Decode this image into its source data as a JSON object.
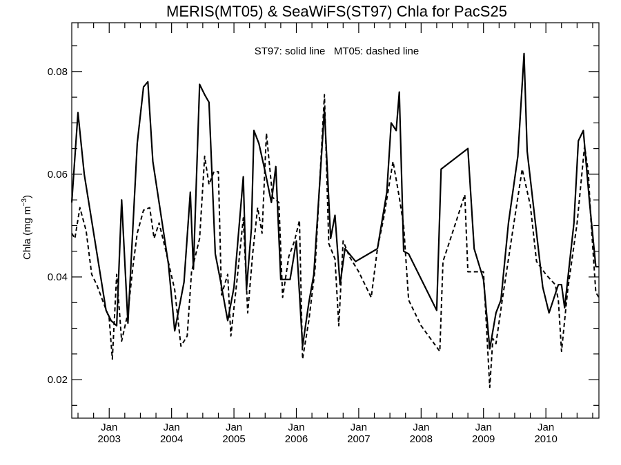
{
  "chart_data": {
    "type": "line",
    "title": "MERIS(MT05) & SeaWiFS(ST97)  Chla for PacS25",
    "annotation": "ST97: solid line   MT05: dashed line",
    "ylabel_main": "Chla (mg m",
    "ylabel_sup": "−3",
    "ylabel_close": ")",
    "xlim": [
      2002.4,
      2010.85
    ],
    "ylim": [
      0.0125,
      0.0895
    ],
    "y_ticks": [
      0.02,
      0.04,
      0.06,
      0.08
    ],
    "y_tick_labels": [
      "0.02",
      "0.04",
      "0.06",
      "0.08"
    ],
    "y_minor_step": 0.005,
    "x_ticks": [
      {
        "x": 2003.0,
        "month": "Jan",
        "year": "2003"
      },
      {
        "x": 2004.0,
        "month": "Jan",
        "year": "2004"
      },
      {
        "x": 2005.0,
        "month": "Jan",
        "year": "2005"
      },
      {
        "x": 2006.0,
        "month": "Jan",
        "year": "2006"
      },
      {
        "x": 2007.0,
        "month": "Jan",
        "year": "2007"
      },
      {
        "x": 2008.0,
        "month": "Jan",
        "year": "2008"
      },
      {
        "x": 2009.0,
        "month": "Jan",
        "year": "2009"
      },
      {
        "x": 2010.0,
        "month": "Jan",
        "year": "2010"
      }
    ],
    "series": [
      {
        "style": "solid",
        "x": [
          2002.4,
          2002.5,
          2002.6,
          2002.95,
          2003.03,
          2003.12,
          2003.2,
          2003.3,
          2003.45,
          2003.55,
          2003.62,
          2003.7,
          2003.95,
          2004.05,
          2004.2,
          2004.3,
          2004.35,
          2004.45,
          2004.53,
          2004.6,
          2004.7,
          2004.78,
          2004.9,
          2005.0,
          2005.15,
          2005.2,
          2005.28,
          2005.32,
          2005.4,
          2005.5,
          2005.6,
          2005.67,
          2005.75,
          2005.8,
          2005.9,
          2006.0,
          2006.1,
          2006.2,
          2006.28,
          2006.45,
          2006.55,
          2006.62,
          2006.7,
          2006.78,
          2006.85,
          2006.95,
          2007.3,
          2007.45,
          2007.52,
          2007.6,
          2007.65,
          2007.72,
          2007.8,
          2008.25,
          2008.32,
          2008.75,
          2008.85,
          2009.0,
          2009.1,
          2009.2,
          2009.28,
          2009.4,
          2009.55,
          2009.65,
          2009.7,
          2009.95,
          2010.05,
          2010.2,
          2010.25,
          2010.3,
          2010.45,
          2010.52,
          2010.6,
          2010.7,
          2010.8,
          2010.85
        ],
        "values": [
          0.0545,
          0.072,
          0.06,
          0.0335,
          0.0315,
          0.0305,
          0.055,
          0.031,
          0.066,
          0.077,
          0.078,
          0.0625,
          0.0425,
          0.0295,
          0.039,
          0.0565,
          0.0415,
          0.0775,
          0.0755,
          0.074,
          0.0445,
          0.0395,
          0.0315,
          0.038,
          0.0595,
          0.0375,
          0.0495,
          0.0685,
          0.066,
          0.0605,
          0.0545,
          0.0615,
          0.0395,
          0.0395,
          0.0395,
          0.047,
          0.0265,
          0.035,
          0.0405,
          0.0725,
          0.0475,
          0.052,
          0.0385,
          0.0455,
          0.0445,
          0.043,
          0.0455,
          0.0565,
          0.07,
          0.0685,
          0.076,
          0.045,
          0.0445,
          0.0335,
          0.061,
          0.065,
          0.0455,
          0.0395,
          0.026,
          0.033,
          0.0355,
          0.0505,
          0.0635,
          0.0835,
          0.0645,
          0.038,
          0.033,
          0.0385,
          0.0385,
          0.034,
          0.0505,
          0.0665,
          0.0685,
          0.0545,
          0.042,
          0.042
        ]
      },
      {
        "style": "dashed",
        "x": [
          2002.4,
          2002.45,
          2002.53,
          2002.63,
          2002.72,
          2002.8,
          2003.0,
          2003.05,
          2003.12,
          2003.2,
          2003.3,
          2003.38,
          2003.45,
          2003.55,
          2003.65,
          2003.72,
          2003.8,
          2003.9,
          2004.05,
          2004.15,
          2004.25,
          2004.32,
          2004.45,
          2004.53,
          2004.6,
          2004.68,
          2004.75,
          2004.8,
          2004.9,
          2004.95,
          2005.05,
          2005.15,
          2005.22,
          2005.3,
          2005.38,
          2005.45,
          2005.52,
          2005.62,
          2005.72,
          2005.78,
          2005.88,
          2005.97,
          2006.05,
          2006.1,
          2006.2,
          2006.3,
          2006.45,
          2006.52,
          2006.62,
          2006.68,
          2006.75,
          2006.85,
          2007.0,
          2007.2,
          2007.3,
          2007.4,
          2007.55,
          2007.65,
          2007.72,
          2007.8,
          2008.0,
          2008.3,
          2008.35,
          2008.5,
          2008.7,
          2008.75,
          2008.85,
          2009.0,
          2009.1,
          2009.15,
          2009.2,
          2009.3,
          2009.45,
          2009.62,
          2009.75,
          2009.85,
          2010.0,
          2010.15,
          2010.2,
          2010.25,
          2010.35,
          2010.5,
          2010.62,
          2010.68,
          2010.72,
          2010.8,
          2010.85
        ],
        "values": [
          0.0485,
          0.0475,
          0.0535,
          0.049,
          0.0405,
          0.0385,
          0.032,
          0.024,
          0.0405,
          0.0275,
          0.033,
          0.042,
          0.0485,
          0.053,
          0.0535,
          0.0475,
          0.0505,
          0.0455,
          0.0375,
          0.0265,
          0.0285,
          0.041,
          0.0475,
          0.0635,
          0.058,
          0.0605,
          0.0605,
          0.0365,
          0.0405,
          0.0285,
          0.0395,
          0.0515,
          0.033,
          0.0445,
          0.0535,
          0.0485,
          0.068,
          0.0555,
          0.0545,
          0.036,
          0.044,
          0.047,
          0.051,
          0.024,
          0.0315,
          0.0415,
          0.0755,
          0.0465,
          0.0435,
          0.0305,
          0.047,
          0.044,
          0.041,
          0.036,
          0.0455,
          0.0515,
          0.0625,
          0.0555,
          0.05,
          0.0355,
          0.0305,
          0.0255,
          0.043,
          0.0485,
          0.056,
          0.041,
          0.041,
          0.041,
          0.0185,
          0.028,
          0.027,
          0.0355,
          0.0475,
          0.061,
          0.054,
          0.043,
          0.0405,
          0.0385,
          0.0355,
          0.0255,
          0.0375,
          0.0505,
          0.0655,
          0.0605,
          0.0515,
          0.037,
          0.036
        ]
      }
    ]
  }
}
